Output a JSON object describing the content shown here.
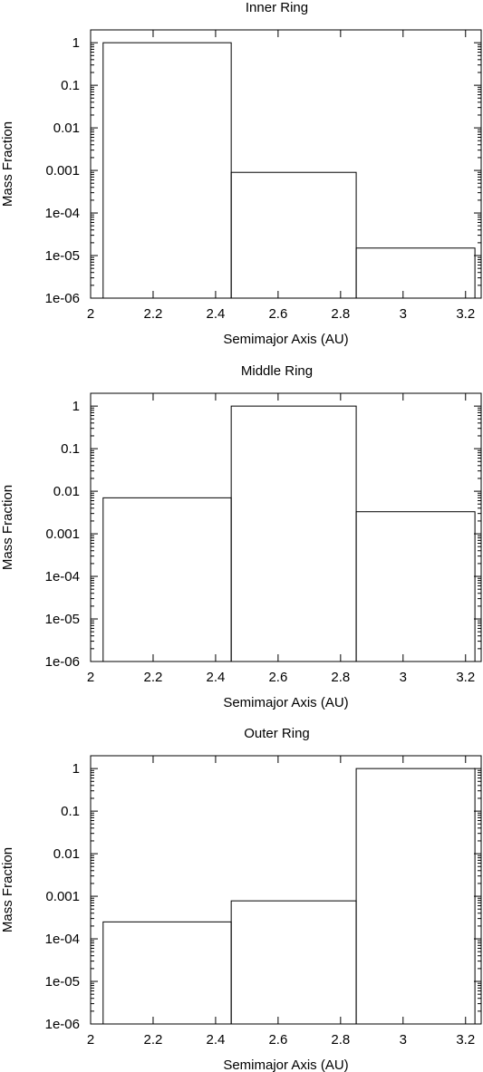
{
  "chart_data": [
    {
      "type": "bar",
      "title": "Inner Ring",
      "xlabel": "Semimajor Axis (AU)",
      "ylabel": "Mass Fraction",
      "xlim": [
        2.0,
        3.25
      ],
      "ylim": [
        1e-06,
        2
      ],
      "yscale": "log",
      "grid": false,
      "xticks": [
        "2",
        "2.2",
        "2.4",
        "2.6",
        "2.8",
        "3",
        "3.2"
      ],
      "yticks": [
        "1e-06",
        "1e-05",
        "1e-04",
        "0.001",
        "0.01",
        "0.1",
        "1"
      ],
      "bins": [
        {
          "x0": 2.04,
          "x1": 2.45,
          "value": 1.0
        },
        {
          "x0": 2.45,
          "x1": 2.85,
          "value": 0.0009
        },
        {
          "x0": 2.85,
          "x1": 3.23,
          "value": 1.5e-05
        }
      ]
    },
    {
      "type": "bar",
      "title": "Middle Ring",
      "xlabel": "Semimajor Axis (AU)",
      "ylabel": "Mass Fraction",
      "xlim": [
        2.0,
        3.25
      ],
      "ylim": [
        1e-06,
        2
      ],
      "yscale": "log",
      "grid": false,
      "xticks": [
        "2",
        "2.2",
        "2.4",
        "2.6",
        "2.8",
        "3",
        "3.2"
      ],
      "yticks": [
        "1e-06",
        "1e-05",
        "1e-04",
        "0.001",
        "0.01",
        "0.1",
        "1"
      ],
      "bins": [
        {
          "x0": 2.04,
          "x1": 2.45,
          "value": 0.007
        },
        {
          "x0": 2.45,
          "x1": 2.85,
          "value": 1.0
        },
        {
          "x0": 2.85,
          "x1": 3.23,
          "value": 0.0033
        }
      ]
    },
    {
      "type": "bar",
      "title": "Outer Ring",
      "xlabel": "Semimajor Axis (AU)",
      "ylabel": "Mass Fraction",
      "xlim": [
        2.0,
        3.25
      ],
      "ylim": [
        1e-06,
        2
      ],
      "yscale": "log",
      "grid": false,
      "xticks": [
        "2",
        "2.2",
        "2.4",
        "2.6",
        "2.8",
        "3",
        "3.2"
      ],
      "yticks": [
        "1e-06",
        "1e-05",
        "1e-04",
        "0.001",
        "0.01",
        "0.1",
        "1"
      ],
      "bins": [
        {
          "x0": 2.04,
          "x1": 2.45,
          "value": 0.00025
        },
        {
          "x0": 2.45,
          "x1": 2.85,
          "value": 0.00078
        },
        {
          "x0": 2.85,
          "x1": 3.23,
          "value": 1.0
        }
      ]
    }
  ]
}
